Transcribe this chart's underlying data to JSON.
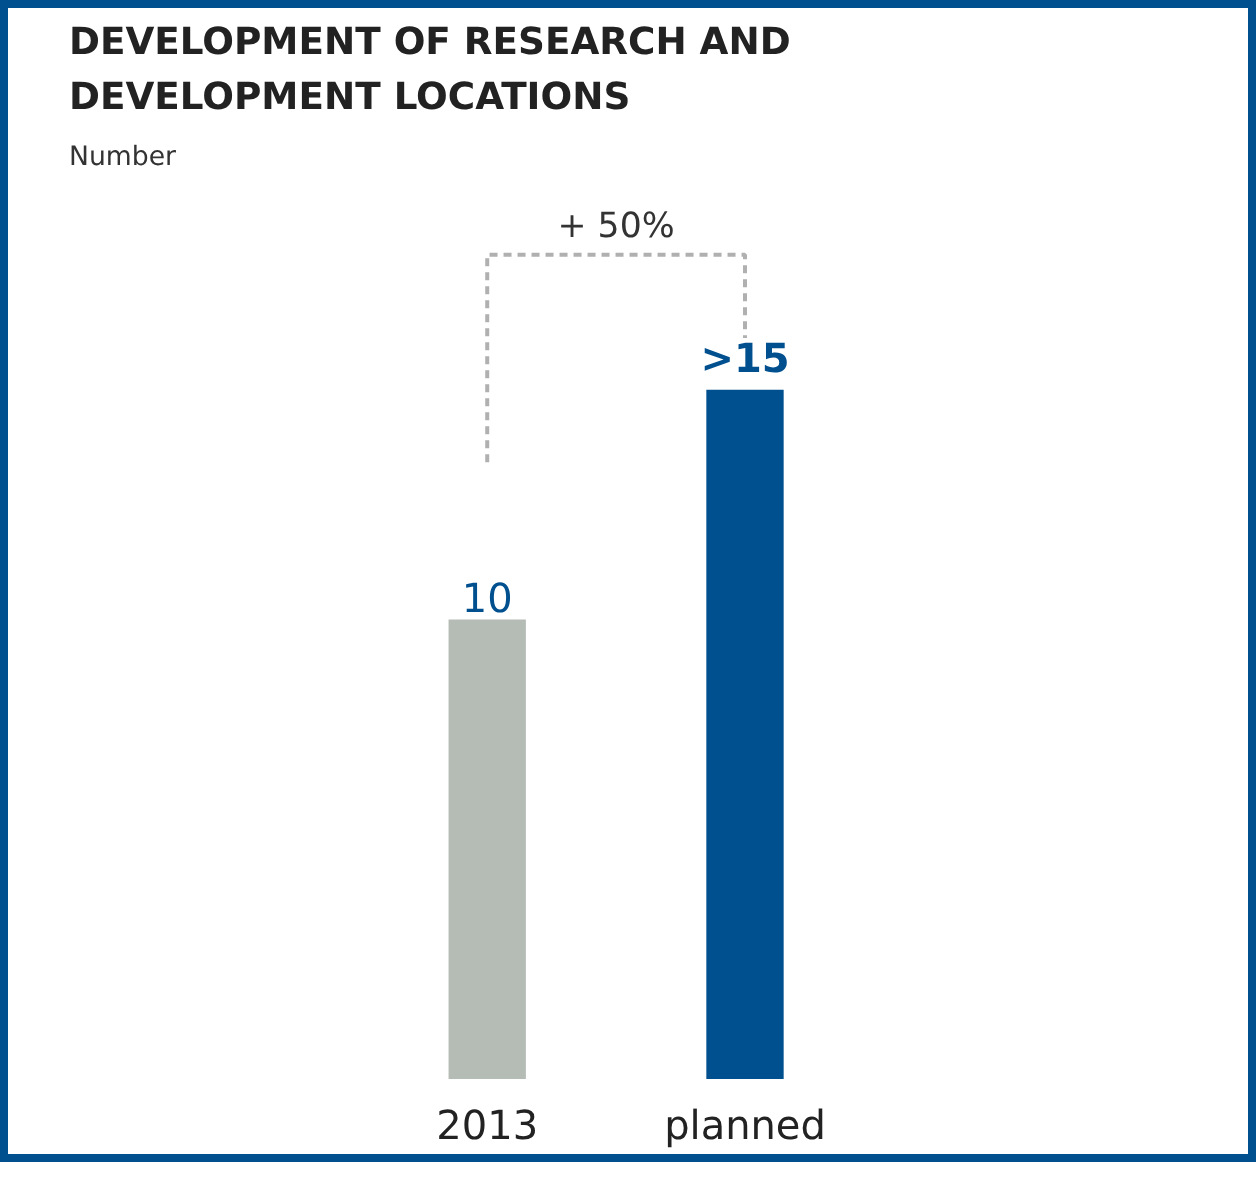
{
  "chart_data": {
    "type": "bar",
    "title": "DEVELOPMENT OF RESEARCH AND DEVELOPMENT LOCATIONS",
    "subtitle": "Number",
    "categories": [
      "2013",
      "planned"
    ],
    "values": [
      10,
      15
    ],
    "colors": [
      "#b5bcb5",
      "#00508f"
    ],
    "value_labels": [
      "10",
      ">15"
    ],
    "annotations": [
      "+ 50%"
    ],
    "grid": false
  }
}
